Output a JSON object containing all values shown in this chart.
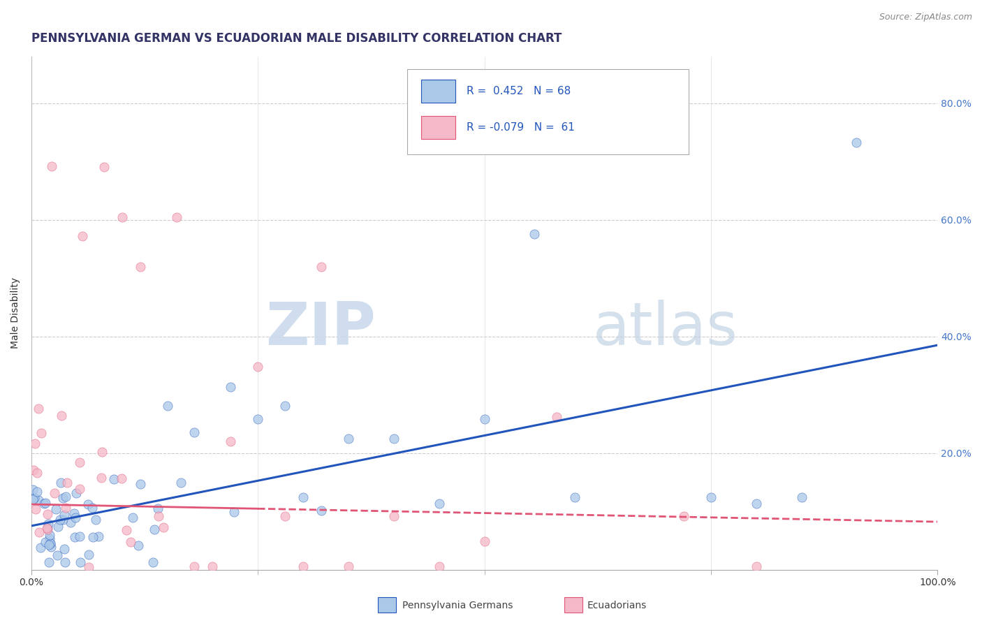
{
  "title": "PENNSYLVANIA GERMAN VS ECUADORIAN MALE DISABILITY CORRELATION CHART",
  "source": "Source: ZipAtlas.com",
  "ylabel": "Male Disability",
  "legend_label1": "Pennsylvania Germans",
  "legend_label2": "Ecuadorians",
  "R1": 0.452,
  "N1": 68,
  "R2": -0.079,
  "N2": 61,
  "xlim": [
    0.0,
    1.0
  ],
  "ylim": [
    0.0,
    0.88
  ],
  "color_blue": "#aac8e8",
  "color_pink": "#f5b8c8",
  "line_blue": "#2255bb",
  "line_pink": "#e05575",
  "background_color": "#ffffff",
  "watermark_zip": "ZIP",
  "watermark_atlas": "atlas",
  "title_fontsize": 12,
  "axis_label_fontsize": 10,
  "tick_fontsize": 10,
  "right_tick_color": "#4477cc",
  "grid_color": "#cccccc",
  "blue_line_start_y": 0.075,
  "blue_line_end_y": 0.385,
  "pink_line_start_y": 0.112,
  "pink_line_end_y": 0.082
}
